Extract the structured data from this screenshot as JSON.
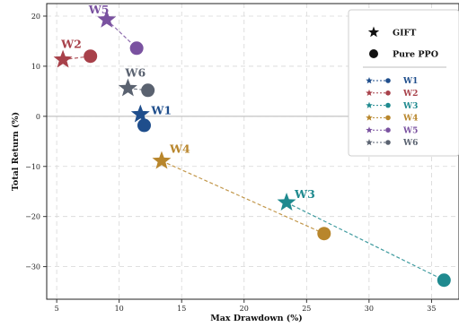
{
  "chart_data": {
    "type": "scatter",
    "title": "",
    "xlabel": "Max Drawdown (%)",
    "ylabel": "Total Return (%)",
    "xlim": [
      4.2,
      37.2
    ],
    "ylim": [
      -36.5,
      22.5
    ],
    "xticks": [
      5,
      10,
      15,
      20,
      25,
      30,
      35
    ],
    "yticks": [
      -30,
      -20,
      -10,
      0,
      10,
      20
    ],
    "grid": true,
    "legend_position": "top-right",
    "method_legend": [
      {
        "marker": "star",
        "label": "GIFT"
      },
      {
        "marker": "circle",
        "label": "Pure PPO"
      }
    ],
    "series": [
      {
        "name": "W1",
        "color": "#1f4e8c",
        "gift": {
          "x": 11.7,
          "y": 0.4
        },
        "ppo": {
          "x": 12.0,
          "y": -1.8
        }
      },
      {
        "name": "W2",
        "color": "#a8414a",
        "gift": {
          "x": 5.5,
          "y": 11.3
        },
        "ppo": {
          "x": 7.7,
          "y": 12.0
        }
      },
      {
        "name": "W3",
        "color": "#1f8a8f",
        "gift": {
          "x": 23.4,
          "y": -17.2
        },
        "ppo": {
          "x": 36.0,
          "y": -32.7
        }
      },
      {
        "name": "W4",
        "color": "#b8862c",
        "gift": {
          "x": 13.4,
          "y": -8.9
        },
        "ppo": {
          "x": 26.4,
          "y": -23.4
        }
      },
      {
        "name": "W5",
        "color": "#7a52a0",
        "gift": {
          "x": 9.0,
          "y": 19.3
        },
        "ppo": {
          "x": 11.4,
          "y": 13.6
        }
      },
      {
        "name": "W6",
        "color": "#5a6270",
        "gift": {
          "x": 10.7,
          "y": 5.6
        },
        "ppo": {
          "x": 12.3,
          "y": 5.2
        }
      }
    ]
  }
}
